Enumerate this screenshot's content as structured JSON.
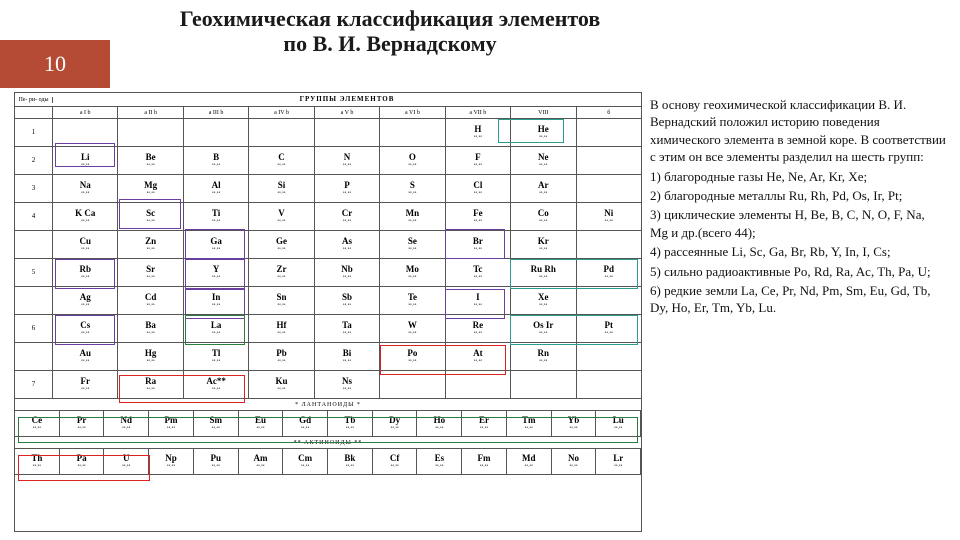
{
  "accent_color": "#b54b35",
  "slide_number": "10",
  "title_line1": "Геохимическая классификация элементов",
  "title_line2": "по В. И. Вернадскому",
  "periodic_table": {
    "header_label": "ГРУППЫ ЭЛЕМЕНТОВ",
    "period_header": "Пе-\nри-\nоды",
    "group_labels": [
      "a  I  b",
      "a  II  b",
      "a  III  b",
      "a  IV  b",
      "a  V  b",
      "a  VI  b",
      "a  VII b",
      "VIII",
      "б"
    ],
    "periods": [
      {
        "n": "1",
        "cells": [
          "",
          "",
          "",
          "",
          "",
          "",
          "H",
          "He",
          ""
        ]
      },
      {
        "n": "2",
        "cells": [
          "Li",
          "Be",
          "B",
          "C",
          "N",
          "O",
          "F",
          "Ne",
          ""
        ]
      },
      {
        "n": "3",
        "cells": [
          "Na",
          "Mg",
          "Al",
          "Si",
          "P",
          "S",
          "Cl",
          "Ar",
          ""
        ]
      },
      {
        "n": "4",
        "cells": [
          "K  Ca",
          "Sc",
          "Ti",
          "V",
          "Cr",
          "Mn",
          "Fe",
          "Co",
          "Ni"
        ]
      },
      {
        "n": "",
        "cells": [
          "Cu",
          "Zn",
          "Ga",
          "Ge",
          "As",
          "Se",
          "Br",
          "Kr",
          ""
        ]
      },
      {
        "n": "5",
        "cells": [
          "Rb",
          "Sr",
          "Y",
          "Zr",
          "Nb",
          "Mo",
          "Tc",
          "Ru  Rh",
          "Pd"
        ]
      },
      {
        "n": "",
        "cells": [
          "Ag",
          "Cd",
          "In",
          "Sn",
          "Sb",
          "Te",
          "I",
          "Xe",
          ""
        ]
      },
      {
        "n": "6",
        "cells": [
          "Cs",
          "Ba",
          "La",
          "Hf",
          "Ta",
          "W",
          "Re",
          "Os  Ir",
          "Pt"
        ]
      },
      {
        "n": "",
        "cells": [
          "Au",
          "Hg",
          "Tl",
          "Pb",
          "Bi",
          "Po",
          "At",
          "Rn",
          ""
        ]
      },
      {
        "n": "7",
        "cells": [
          "Fr",
          "Ra",
          "Ac**",
          "Ku",
          "Ns",
          "",
          "",
          "",
          ""
        ]
      }
    ],
    "lanth_label": "* ЛАНТАНОИДЫ *",
    "lanthanides": [
      "Ce",
      "Pr",
      "Nd",
      "Pm",
      "Sm",
      "Eu",
      "Gd",
      "Tb",
      "Dy",
      "Ho",
      "Er",
      "Tm",
      "Yb",
      "Lu"
    ],
    "act_label": "** АКТИНОИДЫ **",
    "actinides": [
      "Th",
      "Pa",
      "U",
      "Np",
      "Pu",
      "Am",
      "Cm",
      "Bk",
      "Cf",
      "Es",
      "Fm",
      "Md",
      "No",
      "Lr"
    ],
    "u_box_note": "U 92",
    "highlights": {
      "purple": {
        "color": "#6b3fa0",
        "label": "рассеянные"
      },
      "red": {
        "color": "#d22",
        "label": "радиоактивные"
      },
      "teal": {
        "color": "#2a9d8f",
        "label": "благородные"
      },
      "green": {
        "color": "#2a7d3f",
        "label": "редкие земли"
      }
    }
  },
  "text": {
    "intro": "В основу геохимической классификации В. И. Вернадский положил историю поведения химического элемента в земной коре. В соответствии с этим он все элементы разделил на шесть групп:",
    "g1": " 1) благородные газы He, Ne, Ar, Kr, Xe;",
    "g2": "2) благородные металлы Ru, Rh, Pd, Os, Ir, Pt;",
    "g3": "3) циклические элементы H, Be, B, C, N, O, F, Na, Mg и др.(всего 44);",
    "g4": "4) рассеянные Li, Sc, Ga, Br, Rb, Y, In, I, Cs;",
    "g5": "5) сильно радиоактивные Po, Rd, Ra, Ac, Th, Pa, U;",
    "g6": "6) редкие земли La, Ce, Pr, Nd, Pm, Sm, Eu, Gd, Tb, Dy, Ho, Er, Tm, Yb, Lu."
  }
}
